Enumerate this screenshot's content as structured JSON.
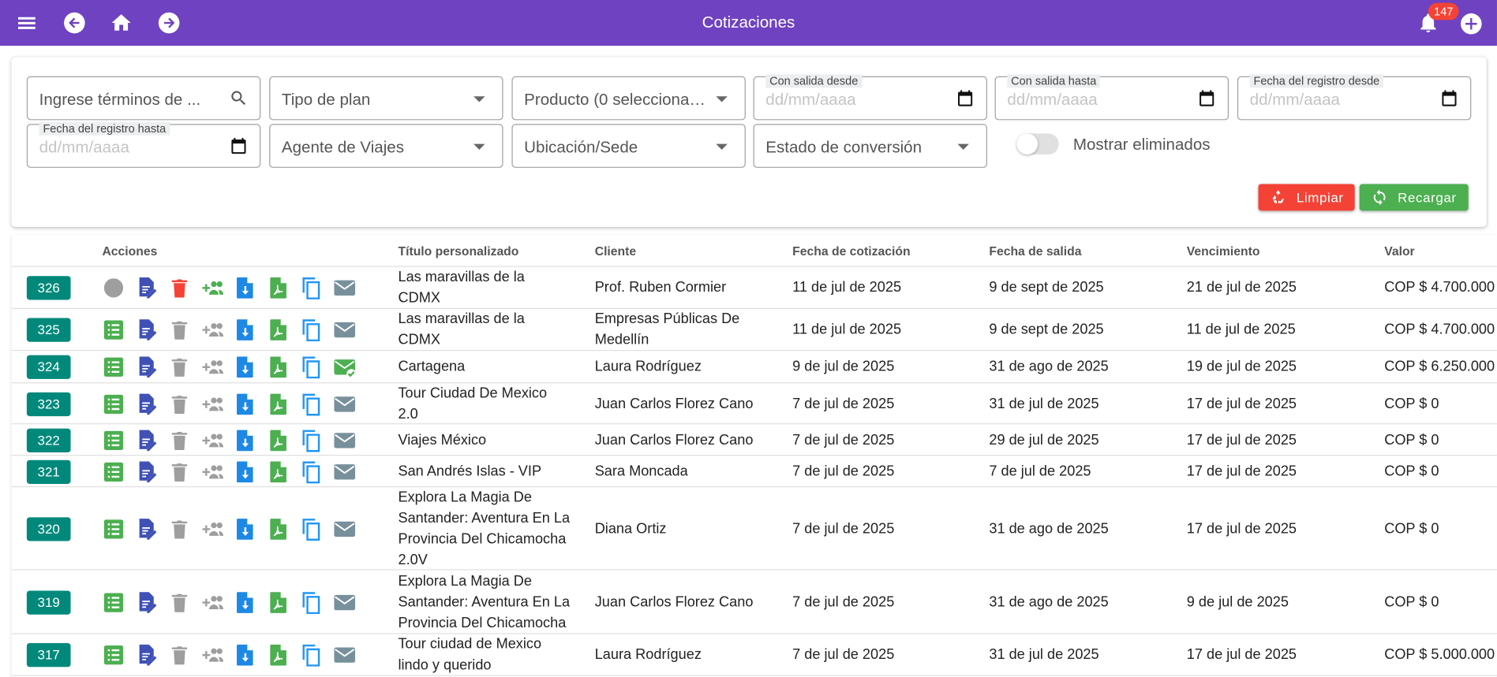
{
  "topbar": {
    "title": "Cotizaciones",
    "notification_count": "147",
    "color": "#6f42c1"
  },
  "filters": {
    "search_placeholder": "Ingrese términos de ...",
    "tipo_plan": "Tipo de plan",
    "producto": "Producto (0 seleccionad…",
    "salida_desde_label": "Con salida desde",
    "salida_hasta_label": "Con salida hasta",
    "registro_desde_label": "Fecha del registro desde",
    "registro_hasta_label": "Fecha del registro hasta",
    "date_placeholder": "dd/mm/aaaa",
    "agente": "Agente de Viajes",
    "ubicacion": "Ubicación/Sede",
    "estado": "Estado de conversión",
    "mostrar_eliminados": "Mostrar eliminados",
    "mostrar_eliminados_on": false,
    "limpiar": "Limpiar",
    "recargar": "Recargar"
  },
  "table": {
    "headers": {
      "acciones": "Acciones",
      "titulo": "Título personalizado",
      "cliente": "Cliente",
      "fecha_cot": "Fecha de cotización",
      "salida": "Fecha de salida",
      "vencimiento": "Vencimiento",
      "valor": "Valor"
    },
    "rows": [
      {
        "id": "326",
        "title": "Las maravillas de la CDMX",
        "client": "Prof. Ruben Cormier",
        "quote_date": "11 de jul de 2025",
        "departure": "9 de sept de 2025",
        "expires": "21 de jul de 2025",
        "value": "COP $ 4.700.000",
        "first_icon": "gray-circle",
        "trash_active": true,
        "group_active": true,
        "mail_sent": false
      },
      {
        "id": "325",
        "title": "Las maravillas de la CDMX",
        "client": "Empresas Públicas De Medellín",
        "quote_date": "11 de jul de 2025",
        "departure": "9 de sept de 2025",
        "expires": "11 de jul de 2025",
        "value": "COP $ 4.700.000",
        "first_icon": "list",
        "trash_active": false,
        "group_active": false,
        "mail_sent": false
      },
      {
        "id": "324",
        "title": "Cartagena",
        "client": "Laura Rodríguez",
        "quote_date": "9 de jul de 2025",
        "departure": "31 de ago de 2025",
        "expires": "19 de jul de 2025",
        "value": "COP $ 6.250.000",
        "first_icon": "list",
        "trash_active": false,
        "group_active": false,
        "mail_sent": true
      },
      {
        "id": "323",
        "title": "Tour Ciudad De Mexico 2.0",
        "client": "Juan Carlos Florez Cano",
        "quote_date": "7 de jul de 2025",
        "departure": "31 de jul de 2025",
        "expires": "17 de jul de 2025",
        "value": "COP $ 0",
        "first_icon": "list",
        "trash_active": false,
        "group_active": false,
        "mail_sent": false
      },
      {
        "id": "322",
        "title": "Viajes México",
        "client": "Juan Carlos Florez Cano",
        "quote_date": "7 de jul de 2025",
        "departure": "29 de jul de 2025",
        "expires": "17 de jul de 2025",
        "value": "COP $ 0",
        "first_icon": "list",
        "trash_active": false,
        "group_active": false,
        "mail_sent": false
      },
      {
        "id": "321",
        "title": "San Andrés Islas - VIP",
        "client": "Sara Moncada",
        "quote_date": "7 de jul de 2025",
        "departure": "7 de jul de 2025",
        "expires": "17 de jul de 2025",
        "value": "COP $ 0",
        "first_icon": "list",
        "trash_active": false,
        "group_active": false,
        "mail_sent": false
      },
      {
        "id": "320",
        "title": "Explora La Magia De Santander: Aventura En La Provincia Del Chicamocha 2.0V",
        "client": "Diana Ortiz",
        "quote_date": "7 de jul de 2025",
        "departure": "31 de ago de 2025",
        "expires": "17 de jul de 2025",
        "value": "COP $ 0",
        "first_icon": "list",
        "trash_active": false,
        "group_active": false,
        "mail_sent": false
      },
      {
        "id": "319",
        "title": "Explora La Magia De Santander: Aventura En La Provincia Del Chicamocha",
        "client": "Juan Carlos Florez Cano",
        "quote_date": "7 de jul de 2025",
        "departure": "31 de ago de 2025",
        "expires": "9 de jul de 2025",
        "value": "COP $ 0",
        "first_icon": "list",
        "trash_active": false,
        "group_active": false,
        "mail_sent": false
      },
      {
        "id": "317",
        "title": "Tour ciudad de Mexico lindo y querido",
        "client": "Laura Rodríguez",
        "quote_date": "7 de jul de 2025",
        "departure": "31 de jul de 2025",
        "expires": "17 de jul de 2025",
        "value": "COP $ 5.000.000",
        "first_icon": "list",
        "trash_active": false,
        "group_active": false,
        "mail_sent": false
      }
    ]
  }
}
